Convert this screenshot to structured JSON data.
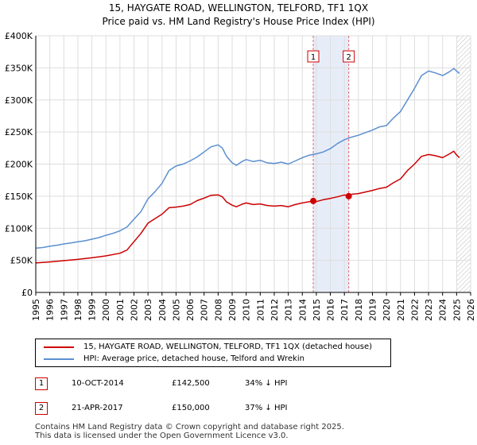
{
  "title_line1": "15, HAYGATE ROAD, WELLINGTON, TELFORD, TF1 1QX",
  "title_line2": "Price paid vs. HM Land Registry's House Price Index (HPI)",
  "chart_data": {
    "type": "line",
    "x_range": [
      1995,
      2026
    ],
    "ylim": [
      0,
      400000
    ],
    "y_ticks": [
      {
        "value": 0,
        "label": "£0"
      },
      {
        "value": 50000,
        "label": "£50K"
      },
      {
        "value": 100000,
        "label": "£100K"
      },
      {
        "value": 150000,
        "label": "£150K"
      },
      {
        "value": 200000,
        "label": "£200K"
      },
      {
        "value": 250000,
        "label": "£250K"
      },
      {
        "value": 300000,
        "label": "£300K"
      },
      {
        "value": 350000,
        "label": "£350K"
      },
      {
        "value": 400000,
        "label": "£400K"
      }
    ],
    "x_ticks": [
      "1995",
      "1996",
      "1997",
      "1998",
      "1999",
      "2000",
      "2001",
      "2002",
      "2003",
      "2004",
      "2005",
      "2006",
      "2007",
      "2008",
      "2009",
      "2010",
      "2011",
      "2012",
      "2013",
      "2014",
      "2015",
      "2016",
      "2017",
      "2018",
      "2019",
      "2020",
      "2021",
      "2022",
      "2023",
      "2024",
      "2025",
      "2026"
    ],
    "grid": true,
    "series": [
      {
        "name": "15, HAYGATE ROAD, WELLINGTON, TELFORD, TF1 1QX (detached house)",
        "color": "#cc0000",
        "points": [
          [
            1995.0,
            46000
          ],
          [
            1996.0,
            47500
          ],
          [
            1997.0,
            49500
          ],
          [
            1998.0,
            51500
          ],
          [
            1999.0,
            54000
          ],
          [
            2000.0,
            57000
          ],
          [
            2001.0,
            61000
          ],
          [
            2001.5,
            66000
          ],
          [
            2002.0,
            79000
          ],
          [
            2002.5,
            92000
          ],
          [
            2003.0,
            108000
          ],
          [
            2003.5,
            115000
          ],
          [
            2004.0,
            122000
          ],
          [
            2004.5,
            132000
          ],
          [
            2005.0,
            133000
          ],
          [
            2005.5,
            134500
          ],
          [
            2006.0,
            137000
          ],
          [
            2006.5,
            143000
          ],
          [
            2007.0,
            147000
          ],
          [
            2007.5,
            151500
          ],
          [
            2008.0,
            152000
          ],
          [
            2008.3,
            149000
          ],
          [
            2008.6,
            141000
          ],
          [
            2009.0,
            136000
          ],
          [
            2009.3,
            133500
          ],
          [
            2009.7,
            137500
          ],
          [
            2010.0,
            139500
          ],
          [
            2010.5,
            137000
          ],
          [
            2011.0,
            138000
          ],
          [
            2011.5,
            135500
          ],
          [
            2012.0,
            134500
          ],
          [
            2012.5,
            135500
          ],
          [
            2013.0,
            133500
          ],
          [
            2013.5,
            137000
          ],
          [
            2014.0,
            139500
          ],
          [
            2014.78,
            142500
          ],
          [
            2015.0,
            141500
          ],
          [
            2015.5,
            144500
          ],
          [
            2016.0,
            146500
          ],
          [
            2016.5,
            149000
          ],
          [
            2017.0,
            152000
          ],
          [
            2017.31,
            150000
          ],
          [
            2017.5,
            153000
          ],
          [
            2018.0,
            154000
          ],
          [
            2018.5,
            156500
          ],
          [
            2019.0,
            159000
          ],
          [
            2019.5,
            162000
          ],
          [
            2020.0,
            164000
          ],
          [
            2020.5,
            171000
          ],
          [
            2021.0,
            177000
          ],
          [
            2021.5,
            190000
          ],
          [
            2022.0,
            200000
          ],
          [
            2022.5,
            212000
          ],
          [
            2023.0,
            215000
          ],
          [
            2023.5,
            213000
          ],
          [
            2024.0,
            210000
          ],
          [
            2024.5,
            216000
          ],
          [
            2024.8,
            220000
          ],
          [
            2025.0,
            214000
          ],
          [
            2025.2,
            210000
          ]
        ]
      },
      {
        "name": "HPI: Average price, detached house, Telford and Wrekin",
        "color": "#5b8fd0",
        "points": [
          [
            1995.0,
            69000
          ],
          [
            1995.5,
            70000
          ],
          [
            1996.0,
            72000
          ],
          [
            1996.5,
            73500
          ],
          [
            1997.0,
            75500
          ],
          [
            1997.5,
            77000
          ],
          [
            1998.0,
            79000
          ],
          [
            1998.5,
            80500
          ],
          [
            1999.0,
            83000
          ],
          [
            1999.5,
            85500
          ],
          [
            2000.0,
            89000
          ],
          [
            2000.5,
            92000
          ],
          [
            2001.0,
            96000
          ],
          [
            2001.5,
            102000
          ],
          [
            2002.0,
            114000
          ],
          [
            2002.5,
            126000
          ],
          [
            2003.0,
            146000
          ],
          [
            2003.5,
            157000
          ],
          [
            2004.0,
            170000
          ],
          [
            2004.5,
            190000
          ],
          [
            2005.0,
            197000
          ],
          [
            2005.5,
            200000
          ],
          [
            2006.0,
            205000
          ],
          [
            2006.5,
            211000
          ],
          [
            2007.0,
            219000
          ],
          [
            2007.5,
            227000
          ],
          [
            2008.0,
            230000
          ],
          [
            2008.3,
            225000
          ],
          [
            2008.6,
            212000
          ],
          [
            2009.0,
            202000
          ],
          [
            2009.3,
            198000
          ],
          [
            2009.7,
            204000
          ],
          [
            2010.0,
            207000
          ],
          [
            2010.5,
            204000
          ],
          [
            2011.0,
            206000
          ],
          [
            2011.5,
            202000
          ],
          [
            2012.0,
            201000
          ],
          [
            2012.5,
            203000
          ],
          [
            2013.0,
            200000
          ],
          [
            2013.5,
            205000
          ],
          [
            2014.0,
            210000
          ],
          [
            2014.5,
            214000
          ],
          [
            2015.0,
            216000
          ],
          [
            2015.5,
            219000
          ],
          [
            2016.0,
            224000
          ],
          [
            2016.5,
            232000
          ],
          [
            2017.0,
            238000
          ],
          [
            2017.5,
            242000
          ],
          [
            2018.0,
            245000
          ],
          [
            2018.5,
            249000
          ],
          [
            2019.0,
            253000
          ],
          [
            2019.5,
            258000
          ],
          [
            2020.0,
            260000
          ],
          [
            2020.5,
            272000
          ],
          [
            2021.0,
            282000
          ],
          [
            2021.5,
            300000
          ],
          [
            2022.0,
            318000
          ],
          [
            2022.5,
            338000
          ],
          [
            2023.0,
            345000
          ],
          [
            2023.5,
            342000
          ],
          [
            2024.0,
            338000
          ],
          [
            2024.5,
            344000
          ],
          [
            2024.8,
            349000
          ],
          [
            2025.0,
            345000
          ],
          [
            2025.2,
            341000
          ]
        ]
      }
    ],
    "transactions": [
      {
        "id": "1",
        "x": 2014.78,
        "price": 142500
      },
      {
        "id": "2",
        "x": 2017.31,
        "price": 150000
      }
    ],
    "shaded_range": [
      2014.78,
      2017.31
    ],
    "hatched_after": 2025.0
  },
  "legend": {
    "items": [
      {
        "label": "15, HAYGATE ROAD, WELLINGTON, TELFORD, TF1 1QX (detached house)",
        "color": "#cc0000"
      },
      {
        "label": "HPI: Average price, detached house, Telford and Wrekin",
        "color": "#5b8fd0"
      }
    ]
  },
  "transactions_table": [
    {
      "num": "1",
      "date": "10-OCT-2014",
      "price": "£142,500",
      "hpi": "34% ↓ HPI"
    },
    {
      "num": "2",
      "date": "21-APR-2017",
      "price": "£150,000",
      "hpi": "37% ↓ HPI"
    }
  ],
  "footer": {
    "line1": "Contains HM Land Registry data © Crown copyright and database right 2025.",
    "line2": "This data is licensed under the Open Government Licence v3.0."
  }
}
